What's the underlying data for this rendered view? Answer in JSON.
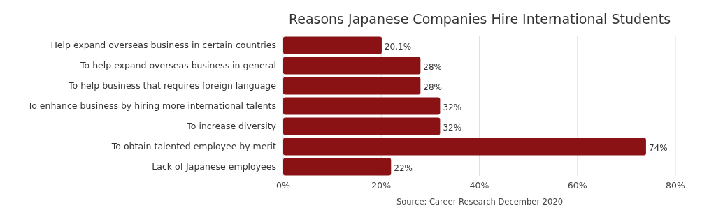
{
  "chart_data": {
    "type": "bar",
    "orientation": "horizontal",
    "title": "Reasons Japanese Companies Hire International Students",
    "categories": [
      "Help expand overseas business in certain countries",
      "To help expand overseas business in general",
      "To help business that requires foreign language",
      "To enhance business by hiring more international talents",
      "To increase diversity",
      "To obtain talented employee by merit",
      "Lack of Japanese employees"
    ],
    "values": [
      20.1,
      28,
      28,
      32,
      32,
      74,
      22
    ],
    "value_labels": [
      "20.1%",
      "28%",
      "28%",
      "32%",
      "32%",
      "74%",
      "22%"
    ],
    "color": "#8b1214",
    "xlim": [
      0,
      80
    ],
    "xticks": [
      {
        "value": 0,
        "label": "0%"
      },
      {
        "value": 20,
        "label": "20%"
      },
      {
        "value": 40,
        "label": "40%"
      },
      {
        "value": 60,
        "label": "60%"
      },
      {
        "value": 80,
        "label": "80%"
      }
    ],
    "grid": "x",
    "annotations": [
      "Source: Career Research December 2020"
    ]
  }
}
